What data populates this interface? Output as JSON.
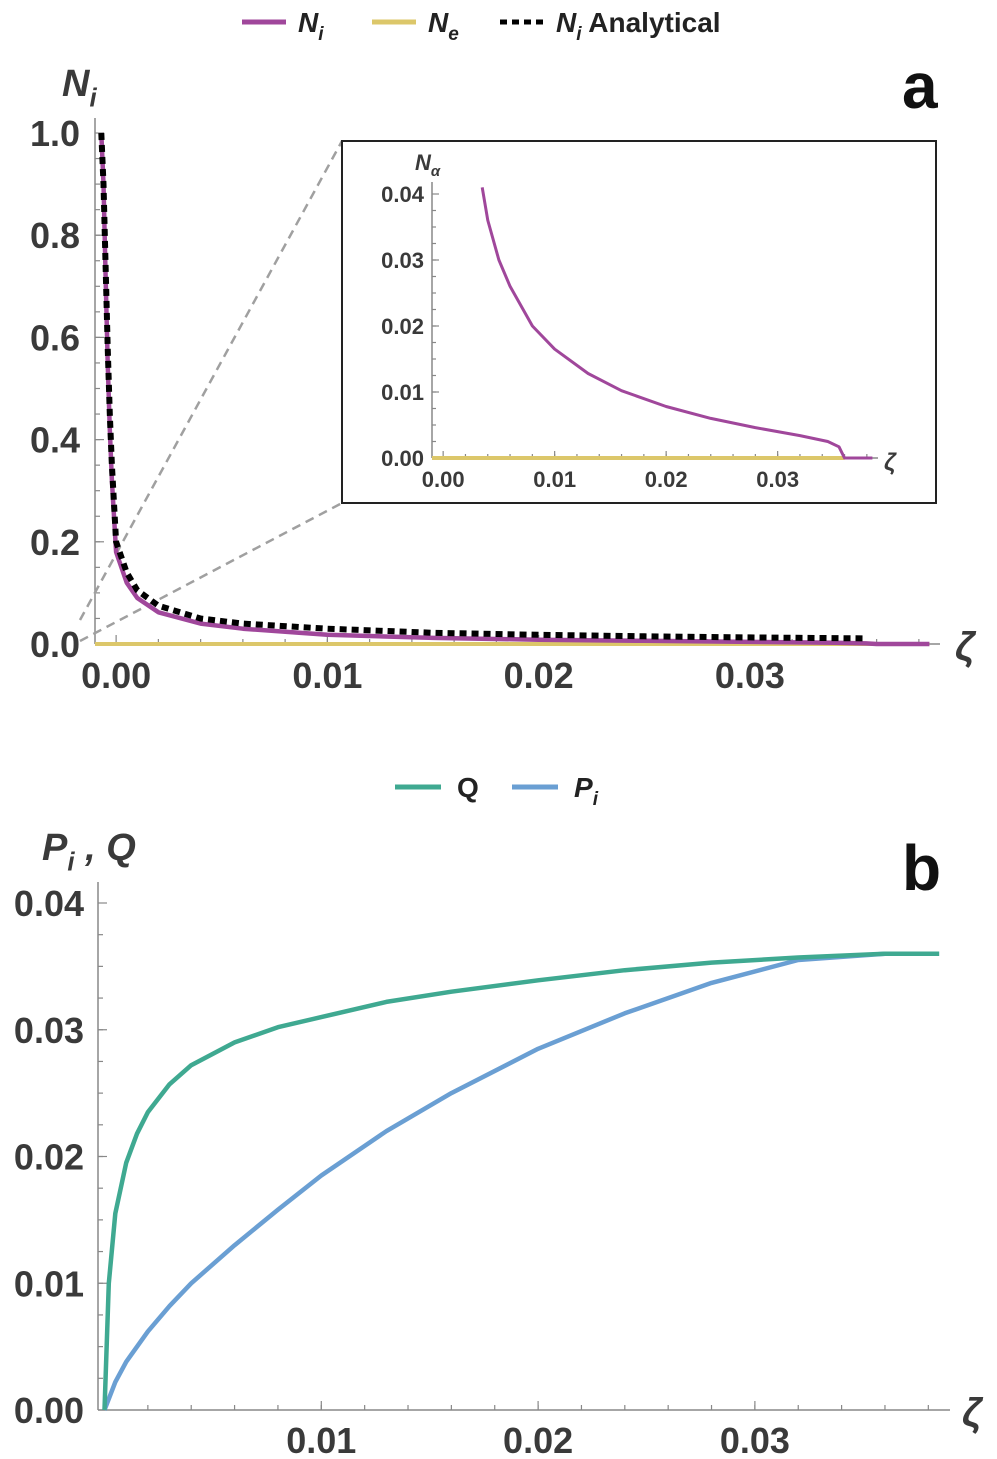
{
  "chart_data": [
    {
      "panel": "a",
      "type": "line",
      "ylabel": "N",
      "ylabel_sub": "i",
      "xlabel": "ζ",
      "xlim": [
        -0.001,
        0.039
      ],
      "ylim": [
        0,
        1.0
      ],
      "x_ticks": [
        "0.00",
        "0.01",
        "0.02",
        "0.03"
      ],
      "y_ticks": [
        "0.0",
        "0.2",
        "0.4",
        "0.6",
        "0.8",
        "1.0"
      ],
      "legend": [
        {
          "base": "N",
          "sub": "i",
          "extra": "",
          "color": "#a0479b",
          "style": "solid"
        },
        {
          "base": "N",
          "sub": "e",
          "extra": "",
          "color": "#dcc76a",
          "style": "solid"
        },
        {
          "base": "N",
          "sub": "i",
          "extra": " Analytical",
          "color": "#000000",
          "style": "dotted"
        }
      ],
      "series": [
        {
          "name": "N_i",
          "color": "#a0479b",
          "x": [
            -0.0007,
            -0.0006,
            -0.0005,
            -0.0004,
            -0.0003,
            -0.0002,
            0.0,
            0.0005,
            0.001,
            0.002,
            0.004,
            0.006,
            0.01,
            0.015,
            0.02,
            0.025,
            0.03,
            0.034,
            0.0355,
            0.036,
            0.0385
          ],
          "y": [
            1.0,
            0.9,
            0.72,
            0.55,
            0.42,
            0.32,
            0.18,
            0.12,
            0.09,
            0.062,
            0.04,
            0.03,
            0.018,
            0.012,
            0.0085,
            0.0062,
            0.0042,
            0.0025,
            0.0012,
            0.0,
            0.0
          ]
        },
        {
          "name": "N_e",
          "color": "#dcc76a",
          "x": [
            -0.001,
            0.0385
          ],
          "y": [
            0,
            0
          ]
        },
        {
          "name": "N_i Analytical",
          "color": "#000000",
          "x": [
            -0.0007,
            -0.0006,
            -0.0005,
            -0.0004,
            -0.0003,
            -0.0002,
            0.0,
            0.0005,
            0.001,
            0.002,
            0.004,
            0.006,
            0.01,
            0.015,
            0.02,
            0.025,
            0.03,
            0.0355
          ],
          "y": [
            1.0,
            0.9,
            0.74,
            0.58,
            0.45,
            0.35,
            0.2,
            0.14,
            0.105,
            0.075,
            0.05,
            0.04,
            0.03,
            0.022,
            0.018,
            0.015,
            0.013,
            0.011
          ]
        }
      ],
      "inset": {
        "ylabel": "N",
        "ylabel_sub": "α",
        "xlabel": "ζ",
        "xlim": [
          -0.001,
          0.039
        ],
        "ylim": [
          0,
          0.04
        ],
        "x_ticks": [
          "0.00",
          "0.01",
          "0.02",
          "0.03"
        ],
        "y_ticks": [
          "0.00",
          "0.01",
          "0.02",
          "0.03",
          "0.04"
        ],
        "series": [
          {
            "name": "N_i",
            "color": "#a0479b",
            "x": [
              0.0035,
              0.004,
              0.005,
              0.006,
              0.008,
              0.01,
              0.013,
              0.016,
              0.02,
              0.024,
              0.028,
              0.032,
              0.0345,
              0.0355,
              0.036,
              0.0385
            ],
            "y": [
              0.041,
              0.036,
              0.03,
              0.026,
              0.02,
              0.0165,
              0.0128,
              0.0102,
              0.0078,
              0.006,
              0.0046,
              0.0034,
              0.0025,
              0.0017,
              0.0,
              0.0
            ]
          },
          {
            "name": "N_e",
            "color": "#dcc76a",
            "x": [
              -0.001,
              0.036
            ],
            "y": [
              0,
              0
            ]
          }
        ]
      }
    },
    {
      "panel": "b",
      "type": "line",
      "ylabel": "P",
      "ylabel_sub": "i",
      "ylabel_extra": " , Q",
      "xlabel": "ζ",
      "xlim": [
        -0.0003,
        0.039
      ],
      "ylim": [
        0,
        0.04
      ],
      "x_ticks": [
        "0.01",
        "0.02",
        "0.03"
      ],
      "y_ticks": [
        "0.00",
        "0.01",
        "0.02",
        "0.03",
        "0.04"
      ],
      "legend": [
        {
          "base": "Q",
          "sub": "",
          "extra": "",
          "color": "#3fa991",
          "style": "solid"
        },
        {
          "base": "P",
          "sub": "i",
          "extra": "",
          "color": "#6a9fd3",
          "style": "solid"
        }
      ],
      "series": [
        {
          "name": "Q",
          "color": "#3fa991",
          "x": [
            0.0,
            0.0002,
            0.0005,
            0.001,
            0.0015,
            0.002,
            0.003,
            0.004,
            0.006,
            0.008,
            0.01,
            0.013,
            0.016,
            0.02,
            0.024,
            0.028,
            0.032,
            0.036,
            0.0385
          ],
          "y": [
            0.0,
            0.01,
            0.0155,
            0.0195,
            0.0218,
            0.0235,
            0.0257,
            0.0272,
            0.029,
            0.0302,
            0.031,
            0.0322,
            0.033,
            0.0339,
            0.0347,
            0.0353,
            0.0357,
            0.036,
            0.036
          ]
        },
        {
          "name": "P_i",
          "color": "#6a9fd3",
          "x": [
            0.0,
            0.0005,
            0.001,
            0.002,
            0.003,
            0.004,
            0.006,
            0.008,
            0.01,
            0.013,
            0.016,
            0.02,
            0.024,
            0.028,
            0.032,
            0.036
          ],
          "y": [
            0.0,
            0.0022,
            0.0038,
            0.0062,
            0.0082,
            0.01,
            0.013,
            0.0158,
            0.0185,
            0.022,
            0.025,
            0.0285,
            0.0313,
            0.0337,
            0.0355,
            0.036
          ]
        }
      ]
    }
  ]
}
